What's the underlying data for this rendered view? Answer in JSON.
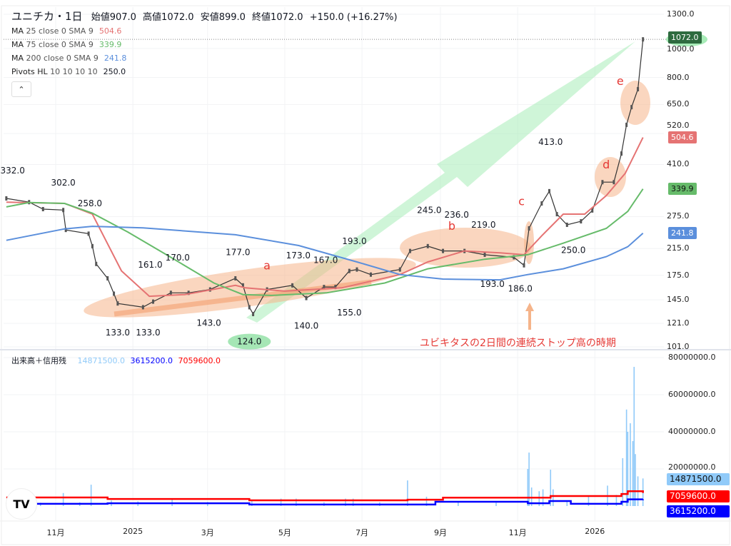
{
  "header": {
    "symbol": "ユニチカ・1日",
    "open": "始値907.0",
    "high": "高値1072.0",
    "low": "安値899.0",
    "close": "終値1072.0",
    "change": "+150.0 (+16.27%)"
  },
  "indicators": [
    {
      "name": "MA",
      "params": "25 close 0 SMA 9",
      "value": "504.6",
      "color": "#e57373"
    },
    {
      "name": "MA",
      "params": "75 close 0 SMA 9",
      "value": "339.9",
      "color": "#66bb6a"
    },
    {
      "name": "MA",
      "params": "200 close 0 SMA 9",
      "value": "241.8",
      "color": "#5b8fdc"
    },
    {
      "name": "Pivots HL",
      "params": "10 10 10 10",
      "value": "250.0",
      "color": "#131722"
    }
  ],
  "collapse_icon": "chevron-up-icon",
  "volume_legend": {
    "name": "出来高＋信用残",
    "volume": "14871500.0",
    "margin_a": "3615200.0",
    "margin_b": "7059600.0"
  },
  "annotation_text": "ユビキタスの2日間の連続ストップ高の時期",
  "chart_data": [
    {
      "type": "line",
      "title": "ユニチカ・1日",
      "yscale": "log",
      "ylim": [
        101,
        1300
      ],
      "y_ticks": [
        "1300.0",
        "1000.0",
        "800.0",
        "650.0",
        "520.0",
        "410.0",
        "275.0",
        "215.0",
        "175.0",
        "145.0",
        "121.0",
        "101.0"
      ],
      "y_tick_values": [
        1300,
        1000,
        800,
        650,
        520,
        410,
        275,
        215,
        175,
        145,
        121,
        101
      ],
      "x_ticks": [
        {
          "label": "11月",
          "date": "2024-11-01"
        },
        {
          "label": "2025",
          "date": "2025-01-01"
        },
        {
          "label": "3月",
          "date": "2025-03-01"
        },
        {
          "label": "5月",
          "date": "2025-05-01"
        },
        {
          "label": "7月",
          "date": "2025-07-01"
        },
        {
          "label": "9月",
          "date": "2025-09-01"
        },
        {
          "label": "11月",
          "date": "2025-11-01"
        },
        {
          "label": "2026",
          "date": "2026-01-01"
        }
      ],
      "last_price": {
        "value": 1072.0,
        "label": "1072.0",
        "color": "#2e6b3f"
      },
      "series": [
        {
          "name": "Price",
          "color": "#333333",
          "points": [
            [
              "2024-09-23",
              316
            ],
            [
              "2024-10-11",
              307
            ],
            [
              "2024-10-22",
              291
            ],
            [
              "2024-11-07",
              289
            ],
            [
              "2024-11-09",
              248
            ],
            [
              "2024-11-27",
              241
            ],
            [
              "2024-11-30",
              219
            ],
            [
              "2024-12-03",
              191
            ],
            [
              "2024-12-12",
              171
            ],
            [
              "2024-12-17",
              152
            ],
            [
              "2024-12-20",
              141
            ],
            [
              "2025-01-09",
              137
            ],
            [
              "2025-01-17",
              143
            ],
            [
              "2025-01-31",
              153
            ],
            [
              "2025-02-14",
              153
            ],
            [
              "2025-03-03",
              157
            ],
            [
              "2025-03-23",
              171
            ],
            [
              "2025-03-29",
              162
            ],
            [
              "2025-04-03",
              137
            ],
            [
              "2025-04-06",
              130
            ],
            [
              "2025-04-17",
              157
            ],
            [
              "2025-05-07",
              162
            ],
            [
              "2025-05-18",
              147
            ],
            [
              "2025-06-01",
              160
            ],
            [
              "2025-06-10",
              160
            ],
            [
              "2025-06-21",
              181
            ],
            [
              "2025-06-27",
              183
            ],
            [
              "2025-07-08",
              176
            ],
            [
              "2025-07-31",
              183
            ],
            [
              "2025-08-08",
              211
            ],
            [
              "2025-08-22",
              219
            ],
            [
              "2025-09-03",
              211
            ],
            [
              "2025-09-20",
              211
            ],
            [
              "2025-10-06",
              205
            ],
            [
              "2025-10-29",
              201
            ],
            [
              "2025-11-06",
              189
            ],
            [
              "2025-11-10",
              251
            ],
            [
              "2025-11-20",
              304
            ],
            [
              "2025-11-26",
              334
            ],
            [
              "2025-12-02",
              280
            ],
            [
              "2025-12-10",
              258
            ],
            [
              "2025-12-21",
              265
            ],
            [
              "2025-12-30",
              288
            ],
            [
              "2026-01-07",
              358
            ],
            [
              "2026-01-16",
              358
            ],
            [
              "2026-01-22",
              446
            ],
            [
              "2026-01-26",
              556
            ],
            [
              "2026-01-30",
              637
            ],
            [
              "2026-02-04",
              731
            ],
            [
              "2026-02-08",
              1072
            ]
          ]
        },
        {
          "name": "MA 25",
          "color": "#e57373",
          "points": [
            [
              "2024-09-23",
              307
            ],
            [
              "2024-11-08",
              304
            ],
            [
              "2024-11-30",
              280
            ],
            [
              "2024-12-23",
              181
            ],
            [
              "2025-01-14",
              149
            ],
            [
              "2025-02-11",
              151
            ],
            [
              "2025-03-23",
              162
            ],
            [
              "2025-03-31",
              159
            ],
            [
              "2025-05-01",
              155
            ],
            [
              "2025-06-15",
              159
            ],
            [
              "2025-07-31",
              176
            ],
            [
              "2025-08-22",
              194
            ],
            [
              "2025-09-20",
              211
            ],
            [
              "2025-10-18",
              208
            ],
            [
              "2025-11-06",
              205
            ],
            [
              "2025-11-20",
              237
            ],
            [
              "2025-12-07",
              280
            ],
            [
              "2025-12-24",
              280
            ],
            [
              "2026-01-10",
              323
            ],
            [
              "2026-01-25",
              383
            ],
            [
              "2026-02-08",
              504.6
            ]
          ]
        },
        {
          "name": "MA 75",
          "color": "#66bb6a",
          "points": [
            [
              "2024-09-23",
              296
            ],
            [
              "2024-10-11",
              306
            ],
            [
              "2024-11-08",
              304
            ],
            [
              "2024-11-30",
              282
            ],
            [
              "2024-12-28",
              244
            ],
            [
              "2025-01-31",
              201
            ],
            [
              "2025-03-06",
              165
            ],
            [
              "2025-03-29",
              151
            ],
            [
              "2025-04-20",
              150
            ],
            [
              "2025-06-03",
              153
            ],
            [
              "2025-07-19",
              165
            ],
            [
              "2025-08-22",
              184
            ],
            [
              "2025-10-06",
              198
            ],
            [
              "2025-11-09",
              205
            ],
            [
              "2025-12-07",
              224
            ],
            [
              "2026-01-10",
              251
            ],
            [
              "2026-01-27",
              286
            ],
            [
              "2026-02-08",
              339.9
            ]
          ]
        },
        {
          "name": "MA 200",
          "color": "#5b8fdc",
          "points": [
            [
              "2024-09-23",
              229
            ],
            [
              "2024-11-08",
              250
            ],
            [
              "2024-11-30",
              255
            ],
            [
              "2025-01-09",
              252
            ],
            [
              "2025-03-23",
              239
            ],
            [
              "2025-05-12",
              220
            ],
            [
              "2025-06-27",
              194
            ],
            [
              "2025-07-31",
              176
            ],
            [
              "2025-09-03",
              170
            ],
            [
              "2025-10-18",
              169
            ],
            [
              "2025-11-09",
              176
            ],
            [
              "2025-12-07",
              184
            ],
            [
              "2026-01-10",
              202
            ],
            [
              "2026-01-27",
              218
            ],
            [
              "2026-02-08",
              241.8
            ]
          ]
        }
      ],
      "pivots": [
        {
          "date": "2024-09-28",
          "label": "332.0",
          "value": 332,
          "pos": "above"
        },
        {
          "date": "2024-11-07",
          "label": "302.0",
          "value": 302,
          "pos": "above"
        },
        {
          "date": "2024-11-28",
          "label": "258.0",
          "value": 258,
          "pos": "above"
        },
        {
          "date": "2025-01-17",
          "label": "161.0",
          "value": 161,
          "pos": "above"
        },
        {
          "date": "2025-02-03",
          "label": "170.0",
          "value": 170,
          "pos": "above"
        },
        {
          "date": "2025-03-25",
          "label": "177.0",
          "value": 177,
          "pos": "above"
        },
        {
          "date": "2025-05-12",
          "label": "173.0",
          "value": 173,
          "pos": "above"
        },
        {
          "date": "2025-06-02",
          "label": "167.0",
          "value": 167,
          "pos": "above"
        },
        {
          "date": "2025-06-25",
          "label": "193.0",
          "value": 193,
          "pos": "above"
        },
        {
          "date": "2025-08-24",
          "label": "245.0",
          "value": 245,
          "pos": "above"
        },
        {
          "date": "2025-09-13",
          "label": "236.0",
          "value": 236,
          "pos": "above"
        },
        {
          "date": "2025-10-05",
          "label": "219.0",
          "value": 219,
          "pos": "above"
        },
        {
          "date": "2025-11-27",
          "label": "413.0",
          "value": 413,
          "pos": "above"
        },
        {
          "date": "2024-12-20",
          "label": "133.0",
          "value": 133,
          "pos": "below"
        },
        {
          "date": "2025-01-13",
          "label": "133.0",
          "value": 133,
          "pos": "below"
        },
        {
          "date": "2025-03-02",
          "label": "143.0",
          "value": 143,
          "pos": "below"
        },
        {
          "date": "2025-04-03",
          "label": "124.0",
          "value": 124,
          "pos": "below",
          "highlight": "#a5e6b5"
        },
        {
          "date": "2025-05-18",
          "label": "140.0",
          "value": 140,
          "pos": "below"
        },
        {
          "date": "2025-06-21",
          "label": "155.0",
          "value": 155,
          "pos": "below"
        },
        {
          "date": "2025-10-12",
          "label": "193.0",
          "value": 193,
          "pos": "below"
        },
        {
          "date": "2025-11-03",
          "label": "186.0",
          "value": 186,
          "pos": "below"
        },
        {
          "date": "2025-12-15",
          "label": "250.0",
          "value": 250,
          "pos": "below"
        }
      ],
      "markers": [
        {
          "label": "a",
          "date": "2025-04-17",
          "value": 183
        },
        {
          "label": "b",
          "date": "2025-09-10",
          "value": 248
        },
        {
          "label": "c",
          "date": "2025-11-04",
          "value": 300
        },
        {
          "label": "d",
          "date": "2026-01-10",
          "value": 398
        },
        {
          "label": "e",
          "date": "2026-01-21",
          "value": 755
        }
      ],
      "value_tags": [
        {
          "label": "504.6",
          "value": 504.6,
          "color": "#e57373"
        },
        {
          "label": "339.9",
          "value": 339.9,
          "color": "#66bb6a"
        },
        {
          "label": "241.8",
          "value": 241.8,
          "color": "#5b8fdc"
        }
      ]
    },
    {
      "type": "bar",
      "title": "出来高＋信用残",
      "ylim": [
        0,
        80000000
      ],
      "y_ticks": [
        "80000000.0",
        "60000000.0",
        "40000000.0",
        "20000000.0"
      ],
      "y_tick_values": [
        80000000,
        60000000,
        40000000,
        20000000
      ],
      "volume": [
        [
          "2024-10-05",
          1500000
        ],
        [
          "2024-10-20",
          1800000
        ],
        [
          "2024-11-07",
          7000000
        ],
        [
          "2024-11-20",
          2000000
        ],
        [
          "2024-11-29",
          11500000
        ],
        [
          "2024-12-15",
          3000000
        ],
        [
          "2025-01-05",
          2500000
        ],
        [
          "2025-02-01",
          3500000
        ],
        [
          "2025-03-01",
          2200000
        ],
        [
          "2025-04-05",
          2800000
        ],
        [
          "2025-04-28",
          4000000
        ],
        [
          "2025-05-10",
          4000000
        ],
        [
          "2025-06-01",
          2000000
        ],
        [
          "2025-06-18",
          4000000
        ],
        [
          "2025-06-24",
          4000000
        ],
        [
          "2025-07-15",
          2000000
        ],
        [
          "2025-08-06",
          13800000
        ],
        [
          "2025-08-21",
          5000000
        ],
        [
          "2025-09-15",
          2500000
        ],
        [
          "2025-10-15",
          1800000
        ],
        [
          "2025-11-09",
          20000000
        ],
        [
          "2025-11-10",
          28800000
        ],
        [
          "2025-11-12",
          10000000
        ],
        [
          "2025-11-18",
          8000000
        ],
        [
          "2025-11-21",
          9000000
        ],
        [
          "2025-11-27",
          19600000
        ],
        [
          "2025-11-29",
          9000000
        ],
        [
          "2025-12-10",
          3000000
        ],
        [
          "2025-12-27",
          5000000
        ],
        [
          "2026-01-11",
          11000000
        ],
        [
          "2026-01-18",
          6000000
        ],
        [
          "2026-01-23",
          25800000
        ],
        [
          "2026-01-26",
          52000000
        ],
        [
          "2026-01-27",
          40000000
        ],
        [
          "2026-01-29",
          44600000
        ],
        [
          "2026-01-31",
          35000000
        ],
        [
          "2026-02-01",
          75000000
        ],
        [
          "2026-02-02",
          28000000
        ],
        [
          "2026-02-04",
          16000000
        ],
        [
          "2026-02-08",
          14871500
        ]
      ],
      "volume_color": "#90caf9",
      "series": [
        {
          "name": "信用残(赤)",
          "color": "#ff0000",
          "label": "7059600.0",
          "points": [
            [
              "2024-09-23",
              4600000
            ],
            [
              "2024-12-12",
              3800000
            ],
            [
              "2025-04-03",
              3100000
            ],
            [
              "2025-08-06",
              3400000
            ],
            [
              "2025-09-03",
              4500000
            ],
            [
              "2025-11-09",
              4500000
            ],
            [
              "2025-11-27",
              5400000
            ],
            [
              "2026-01-22",
              6500000
            ],
            [
              "2026-01-27",
              8000000
            ],
            [
              "2026-02-08",
              7059600
            ]
          ]
        },
        {
          "name": "信用残(青)",
          "color": "#0000ff",
          "label": "3615200.0",
          "points": [
            [
              "2024-09-23",
              1200000
            ],
            [
              "2024-12-12",
              1500000
            ],
            [
              "2025-04-03",
              800000
            ],
            [
              "2025-08-06",
              800000
            ],
            [
              "2025-08-28",
              2300000
            ],
            [
              "2025-11-09",
              1500000
            ],
            [
              "2025-11-26",
              2700000
            ],
            [
              "2025-12-13",
              1200000
            ],
            [
              "2026-01-22",
              2300000
            ],
            [
              "2026-01-27",
              3600000
            ],
            [
              "2026-02-08",
              3615200
            ]
          ]
        }
      ],
      "volume_tag": {
        "label": "14871500.0",
        "color": "#90caf9"
      }
    }
  ]
}
